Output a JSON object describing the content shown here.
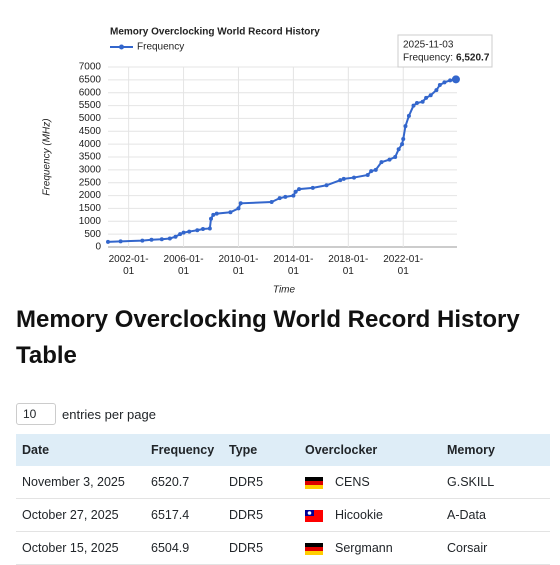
{
  "chart_data": {
    "type": "line",
    "title": "Memory Overclocking World Record History",
    "xlabel": "Time",
    "ylabel": "Frequency (MHz)",
    "legend": "top-left",
    "grid": true,
    "x": [
      "2000-07-01",
      "2001-06-01",
      "2003-01-01",
      "2003-09-01",
      "2004-06-01",
      "2005-01-01",
      "2005-06-01",
      "2005-10-01",
      "2006-01-01",
      "2006-06-01",
      "2007-01-01",
      "2007-06-01",
      "2007-12-01",
      "2008-01-01",
      "2008-03-01",
      "2008-06-01",
      "2009-06-01",
      "2010-01-01",
      "2010-03-01",
      "2012-06-01",
      "2013-01-01",
      "2013-06-01",
      "2014-01-01",
      "2014-03-01",
      "2014-06-01",
      "2015-06-01",
      "2016-06-01",
      "2017-06-01",
      "2017-09-01",
      "2018-06-01",
      "2019-06-01",
      "2019-09-01",
      "2020-01-01",
      "2020-06-01",
      "2021-01-01",
      "2021-06-01",
      "2021-09-01",
      "2021-12-01",
      "2022-01-01",
      "2022-03-01",
      "2022-06-01",
      "2022-10-01",
      "2023-01-01",
      "2023-06-01",
      "2023-09-01",
      "2024-01-01",
      "2024-06-01",
      "2024-09-01",
      "2025-01-01",
      "2025-06-01",
      "2025-10-15",
      "2025-10-27",
      "2025-11-03"
    ],
    "series": [
      {
        "name": "Frequency",
        "color": "#3366cc",
        "values": [
          200,
          220,
          250,
          280,
          300,
          330,
          400,
          500,
          560,
          600,
          650,
          700,
          720,
          1100,
          1250,
          1300,
          1350,
          1500,
          1700,
          1750,
          1900,
          1950,
          2000,
          2150,
          2250,
          2300,
          2400,
          2600,
          2650,
          2700,
          2800,
          2950,
          3000,
          3300,
          3400,
          3500,
          3800,
          4000,
          4200,
          4700,
          5100,
          5500,
          5600,
          5650,
          5800,
          5900,
          6100,
          6300,
          6400,
          6480,
          6504.9,
          6517.4,
          6520.7
        ]
      }
    ],
    "xlim": [
      "2000-07-01",
      "2025-12-01"
    ],
    "xticks": [
      "2002-01-01",
      "2006-01-01",
      "2010-01-01",
      "2014-01-01",
      "2018-01-01",
      "2022-01-01"
    ],
    "ylim": [
      0,
      7000
    ],
    "yticks": [
      0,
      500,
      1000,
      1500,
      2000,
      2500,
      3000,
      3500,
      4000,
      4500,
      5000,
      5500,
      6000,
      6500,
      7000
    ],
    "tooltip": {
      "x": "2025-11-03",
      "label": "Frequency:",
      "value_label": "6,520.7"
    }
  },
  "heading": "Memory Overclocking World Record History Table",
  "page_length": {
    "value": 10,
    "label": "entries per page"
  },
  "table": {
    "columns": [
      "Date",
      "Frequency",
      "Type",
      "Overclocker",
      "Memory"
    ],
    "rows": [
      [
        "November 3, 2025",
        6520.7,
        "DDR5",
        "CENS",
        "G.SKILL"
      ],
      [
        "October 27, 2025",
        6517.4,
        "DDR5",
        "Hicookie",
        "A-Data"
      ],
      [
        "October 15, 2025",
        6504.9,
        "DDR5",
        "Sergmann",
        "Corsair"
      ]
    ]
  }
}
